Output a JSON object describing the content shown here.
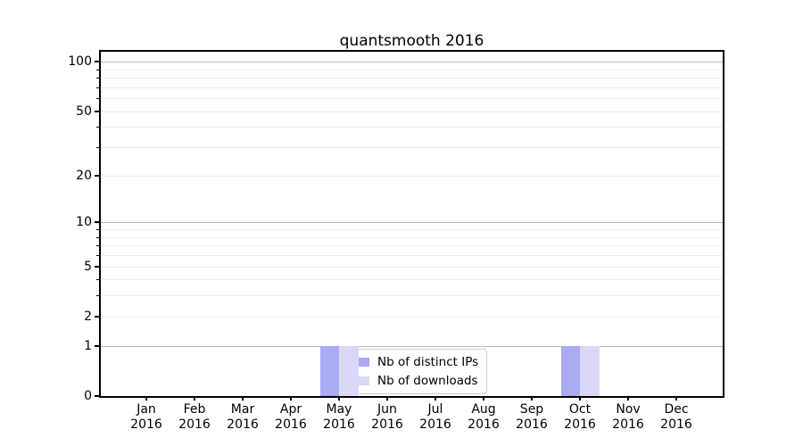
{
  "chart_data": {
    "type": "bar",
    "title": "quantsmooth 2016",
    "categories": [
      {
        "label": "Jan",
        "sublabel": "2016"
      },
      {
        "label": "Feb",
        "sublabel": "2016"
      },
      {
        "label": "Mar",
        "sublabel": "2016"
      },
      {
        "label": "Apr",
        "sublabel": "2016"
      },
      {
        "label": "May",
        "sublabel": "2016"
      },
      {
        "label": "Jun",
        "sublabel": "2016"
      },
      {
        "label": "Jul",
        "sublabel": "2016"
      },
      {
        "label": "Aug",
        "sublabel": "2016"
      },
      {
        "label": "Sep",
        "sublabel": "2016"
      },
      {
        "label": "Oct",
        "sublabel": "2016"
      },
      {
        "label": "Nov",
        "sublabel": "2016"
      },
      {
        "label": "Dec",
        "sublabel": "2016"
      }
    ],
    "series": [
      {
        "name": "Nb of distinct IPs",
        "color": "#aaaaf5",
        "values": [
          0,
          0,
          0,
          0,
          1,
          0,
          0,
          0,
          0,
          1,
          0,
          0
        ]
      },
      {
        "name": "Nb of downloads",
        "color": "#d9d9f7",
        "values": [
          0,
          0,
          0,
          0,
          1,
          0,
          0,
          0,
          0,
          1,
          0,
          0
        ]
      }
    ],
    "xlabel": "",
    "ylabel": "",
    "yscale": "log1p",
    "ylim": [
      0,
      115
    ],
    "ytick_labels": [
      0,
      1,
      2,
      5,
      10,
      20,
      50,
      100
    ],
    "ygrid_major": [
      1,
      10,
      100
    ],
    "ygrid_minor": [
      2,
      3,
      4,
      5,
      6,
      7,
      8,
      9,
      20,
      30,
      40,
      50,
      60,
      70,
      80,
      90
    ],
    "grid": true,
    "legend_position": "lower center"
  },
  "colors": {
    "grid_major": "#b8b8b8",
    "grid_minor": "#ececec",
    "axis": "#000000",
    "background": "#ffffff"
  }
}
